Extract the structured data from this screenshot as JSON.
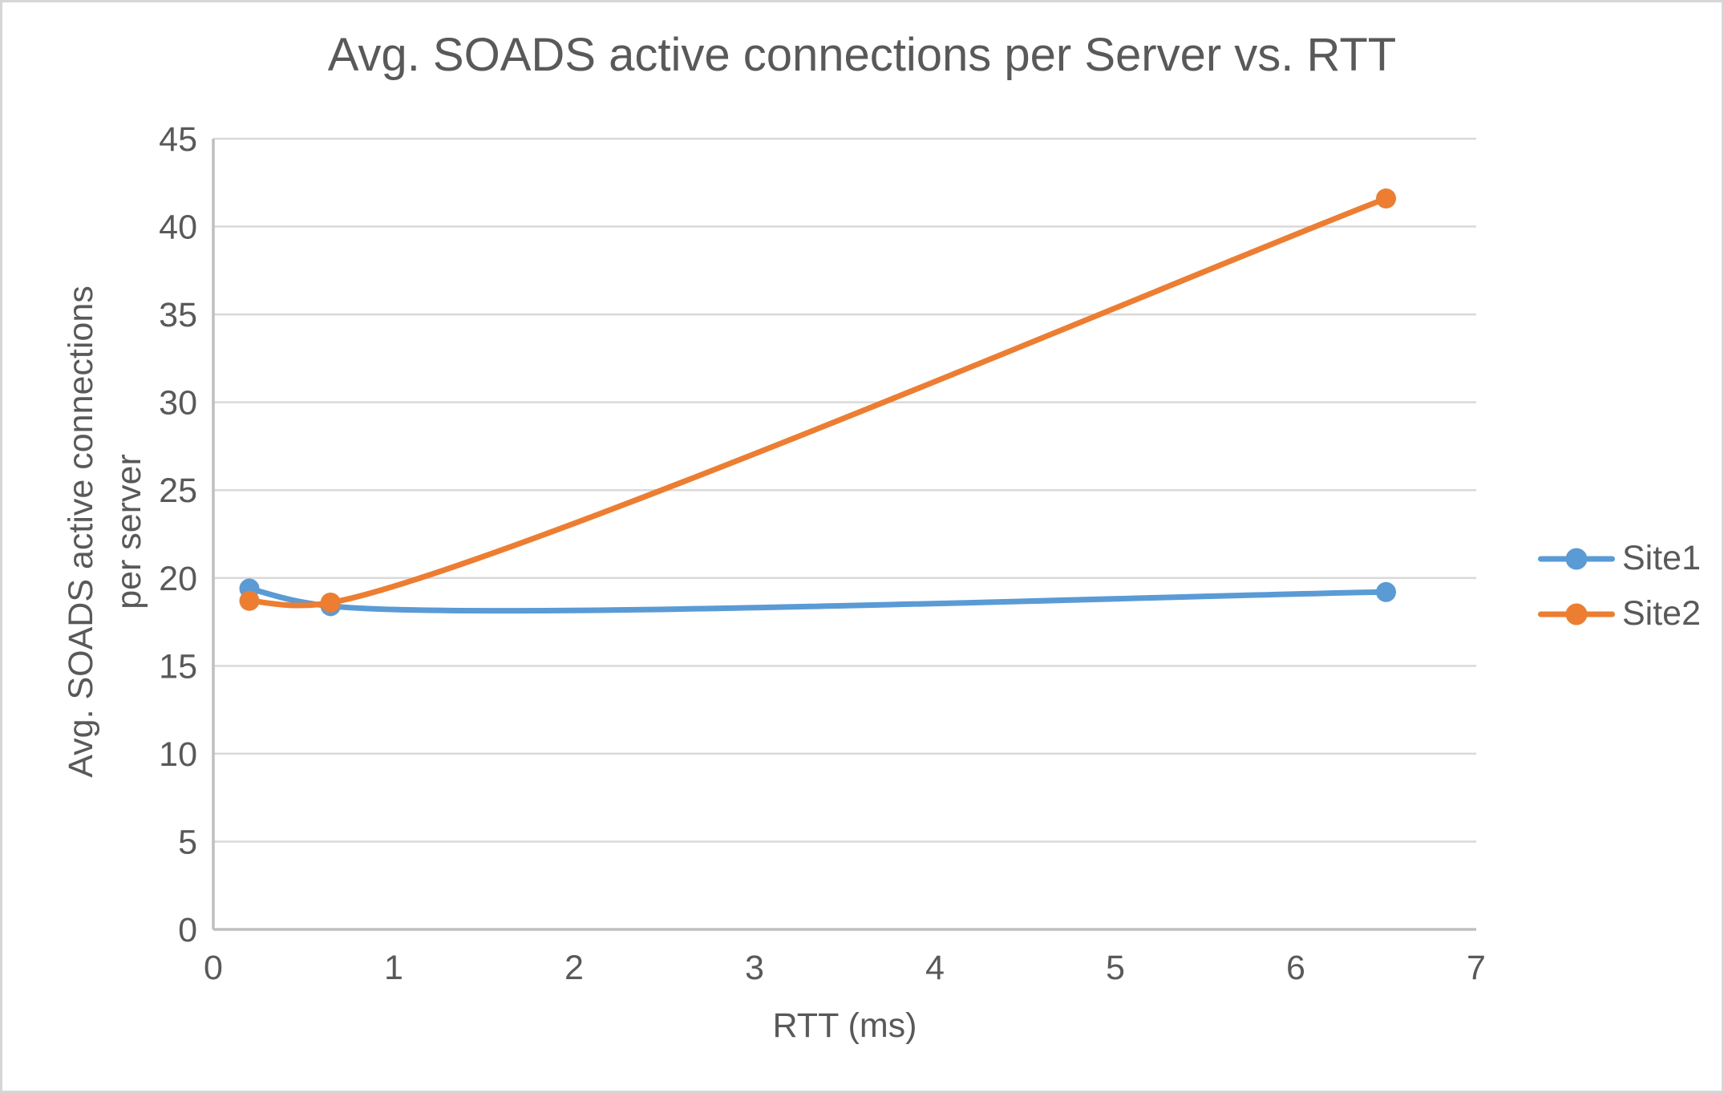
{
  "chart_data": {
    "type": "line",
    "title": "Avg. SOADS active connections per Server vs. RTT",
    "xlabel": "RTT (ms)",
    "ylabel": "Avg. SOADS active connections per server",
    "xlim": [
      0,
      7
    ],
    "ylim": [
      0,
      45
    ],
    "x_ticks": [
      0,
      1,
      2,
      3,
      4,
      5,
      6,
      7
    ],
    "y_ticks": [
      0,
      5,
      10,
      15,
      20,
      25,
      30,
      35,
      40,
      45
    ],
    "grid": "horizontal",
    "line_style": "smooth",
    "legend_position": "right",
    "series": [
      {
        "name": "Site1",
        "color": "#5B9BD5",
        "points": [
          [
            0.2,
            19.4
          ],
          [
            0.65,
            18.4
          ],
          [
            6.5,
            19.2
          ]
        ]
      },
      {
        "name": "Site2",
        "color": "#ED7D31",
        "points": [
          [
            0.2,
            18.7
          ],
          [
            0.65,
            18.6
          ],
          [
            6.5,
            41.6
          ]
        ]
      }
    ]
  },
  "colors": {
    "text": "#595959",
    "gridline": "#D9D9D9",
    "axis_line": "#BFBFBF",
    "background": "#FFFFFF",
    "border": "#D6D6D6"
  }
}
